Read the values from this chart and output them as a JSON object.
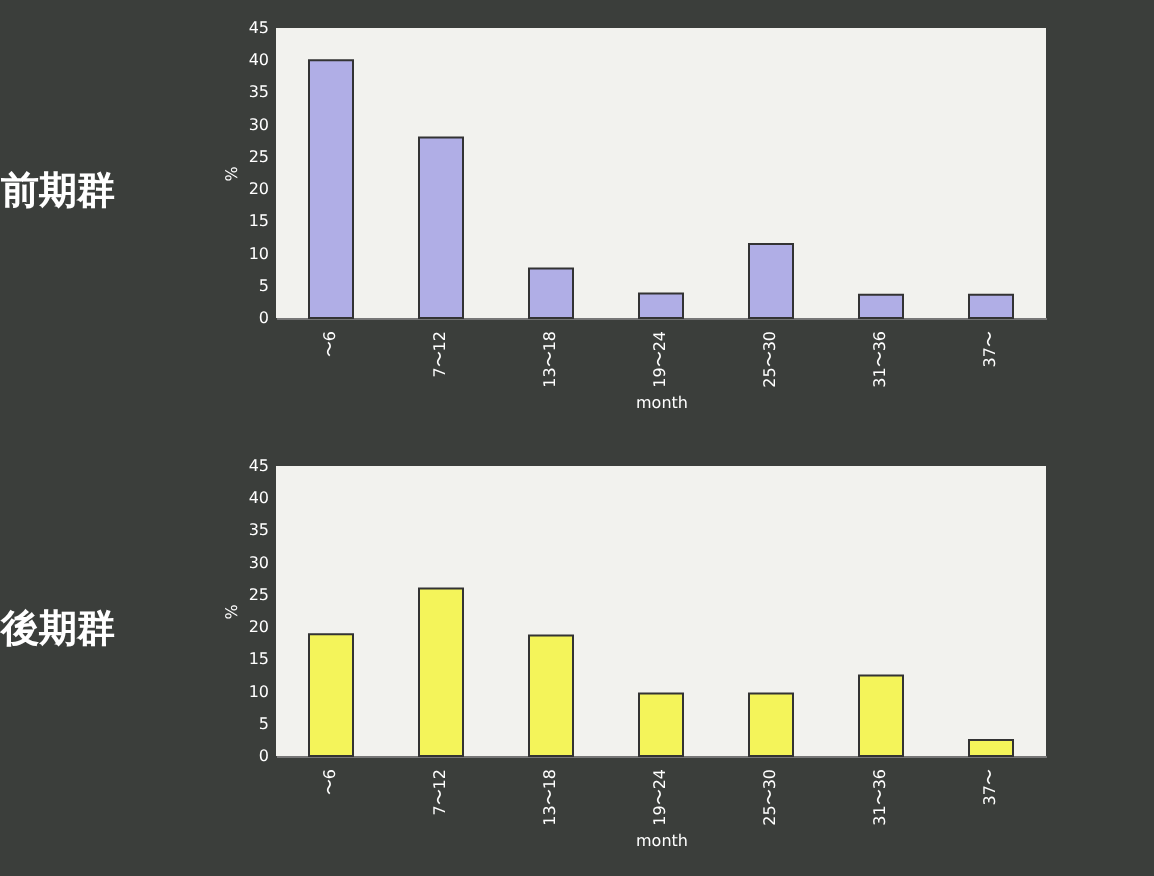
{
  "chart_data": [
    {
      "type": "bar",
      "title": "前期群",
      "xlabel": "month",
      "ylabel": "%",
      "categories": [
        "〜6",
        "7〜12",
        "13〜18",
        "19〜24",
        "25〜30",
        "31〜36",
        "37〜"
      ],
      "values": [
        40,
        28,
        7.7,
        3.8,
        11.5,
        3.6,
        3.6
      ],
      "color": "#b0aee6",
      "ylim": [
        0,
        45
      ],
      "yticks": [
        0,
        5,
        10,
        15,
        20,
        25,
        30,
        35,
        40,
        45
      ],
      "grid": false
    },
    {
      "type": "bar",
      "title": "後期群",
      "xlabel": "month",
      "ylabel": "%",
      "categories": [
        "〜6",
        "7〜12",
        "13〜18",
        "19〜24",
        "25〜30",
        "31〜36",
        "37〜"
      ],
      "values": [
        18.9,
        26,
        18.7,
        9.7,
        9.7,
        12.5,
        2.5
      ],
      "color": "#f4f45a",
      "ylim": [
        0,
        45
      ],
      "yticks": [
        0,
        5,
        10,
        15,
        20,
        25,
        30,
        35,
        40,
        45
      ],
      "grid": false
    }
  ]
}
